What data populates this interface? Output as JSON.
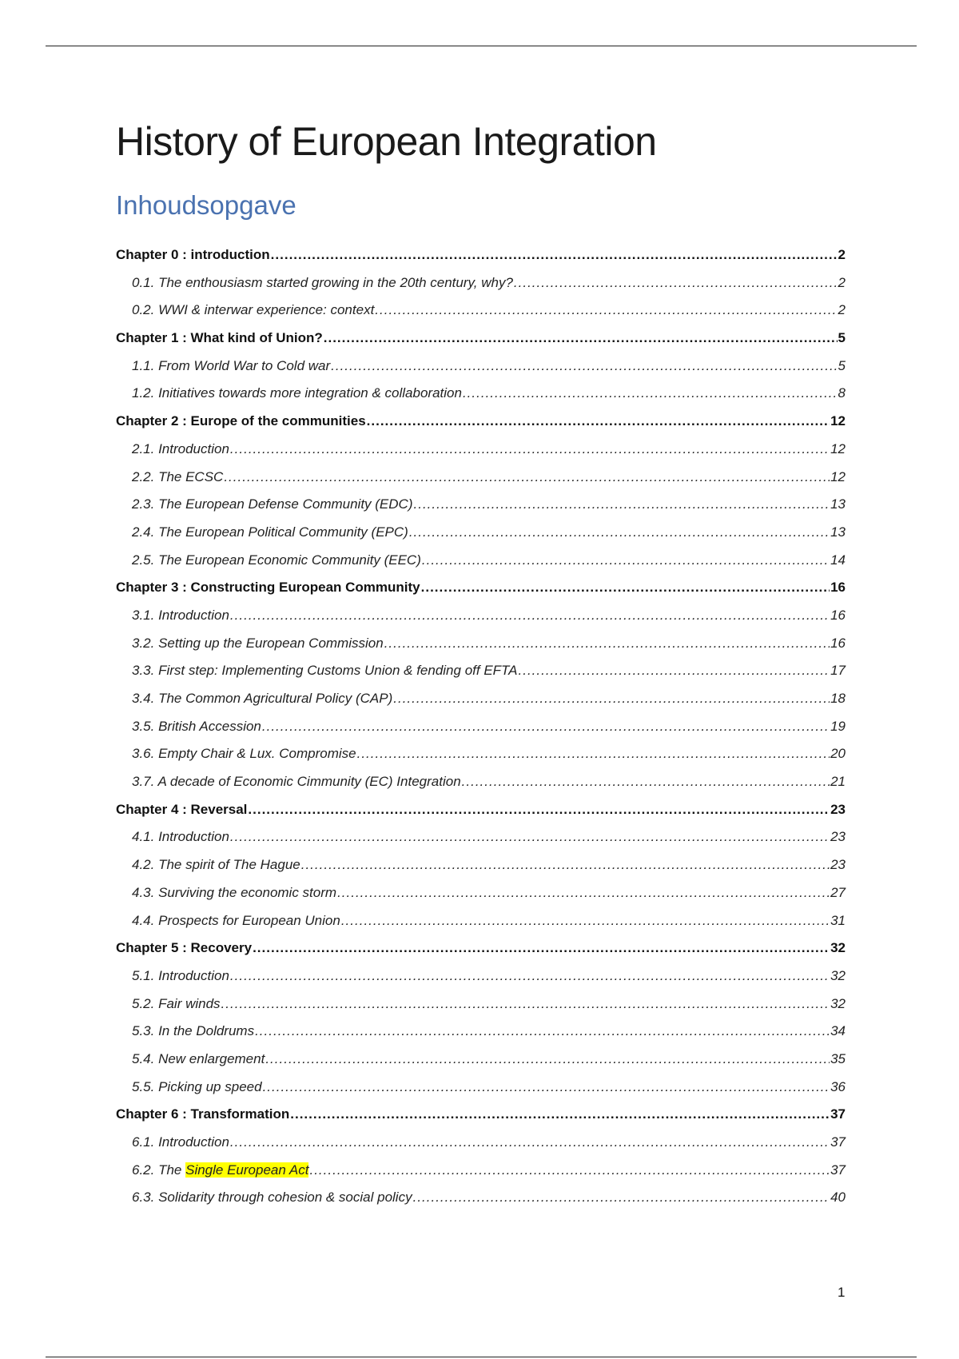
{
  "title": "History of European Integration",
  "toc_heading": "Inhoudsopgave",
  "highlight_color": "#ffff00",
  "toc": [
    {
      "type": "chapter",
      "label": "Chapter 0 : introduction",
      "page": "2"
    },
    {
      "type": "section",
      "label": "0.1. The enthousiasm started growing in the 20th century, why?",
      "page": "2"
    },
    {
      "type": "section",
      "label": "0.2. WWI & interwar experience: context",
      "page": "2"
    },
    {
      "type": "chapter",
      "label": "Chapter 1 : What kind of Union?",
      "page": "5"
    },
    {
      "type": "section",
      "label": "1.1. From World War to Cold war",
      "page": "5"
    },
    {
      "type": "section",
      "label": "1.2. Initiatives towards more integration & collaboration",
      "page": "8"
    },
    {
      "type": "chapter",
      "label": "Chapter 2 : Europe of the communities",
      "page": "12"
    },
    {
      "type": "section",
      "label": "2.1. Introduction",
      "page": "12"
    },
    {
      "type": "section",
      "label": "2.2. The ECSC",
      "page": "12"
    },
    {
      "type": "section",
      "label": "2.3. The European Defense Community (EDC)",
      "page": "13"
    },
    {
      "type": "section",
      "label": "2.4. The European Political Community (EPC)",
      "page": "13"
    },
    {
      "type": "section",
      "label": "2.5. The European Economic Community (EEC)",
      "page": "14"
    },
    {
      "type": "chapter",
      "label": "Chapter 3 : Constructing European Community",
      "page": "16"
    },
    {
      "type": "section",
      "label": "3.1. Introduction",
      "page": "16"
    },
    {
      "type": "section",
      "label": "3.2. Setting up the European Commission",
      "page": "16"
    },
    {
      "type": "section",
      "label": "3.3. First step: Implementing Customs Union & fending off EFTA",
      "page": "17"
    },
    {
      "type": "section",
      "label": "3.4. The Common Agricultural Policy (CAP)",
      "page": "18"
    },
    {
      "type": "section",
      "label": "3.5. British Accession",
      "page": "19"
    },
    {
      "type": "section",
      "label": "3.6. Empty Chair & Lux. Compromise",
      "page": "20"
    },
    {
      "type": "section",
      "label": "3.7. A decade of Economic Cimmunity (EC) Integration",
      "page": "21"
    },
    {
      "type": "chapter",
      "label": "Chapter 4 : Reversal",
      "page": "23"
    },
    {
      "type": "section",
      "label": "4.1. Introduction",
      "page": "23"
    },
    {
      "type": "section",
      "label": "4.2. The spirit of The Hague",
      "page": "23"
    },
    {
      "type": "section",
      "label": "4.3. Surviving the economic storm",
      "page": "27"
    },
    {
      "type": "section",
      "label": "4.4. Prospects for European Union",
      "page": "31"
    },
    {
      "type": "chapter",
      "label": "Chapter 5 : Recovery",
      "page": "32"
    },
    {
      "type": "section",
      "label": "5.1. Introduction",
      "page": "32"
    },
    {
      "type": "section",
      "label": "5.2. Fair winds",
      "page": "32"
    },
    {
      "type": "section",
      "label": "5.3. In the Doldrums",
      "page": "34"
    },
    {
      "type": "section",
      "label": "5.4. New enlargement",
      "page": "35"
    },
    {
      "type": "section",
      "label": "5.5. Picking up speed",
      "page": "36"
    },
    {
      "type": "chapter",
      "label": "Chapter 6 : Transformation",
      "page": "37"
    },
    {
      "type": "section",
      "label": "6.1. Introduction",
      "page": "37"
    },
    {
      "type": "section",
      "label": "6.2. The ",
      "label_highlight": "Single European Act",
      "page": "37"
    },
    {
      "type": "section",
      "label": "6.3. Solidarity through cohesion & social policy",
      "page": "40"
    }
  ],
  "page_number": "1"
}
